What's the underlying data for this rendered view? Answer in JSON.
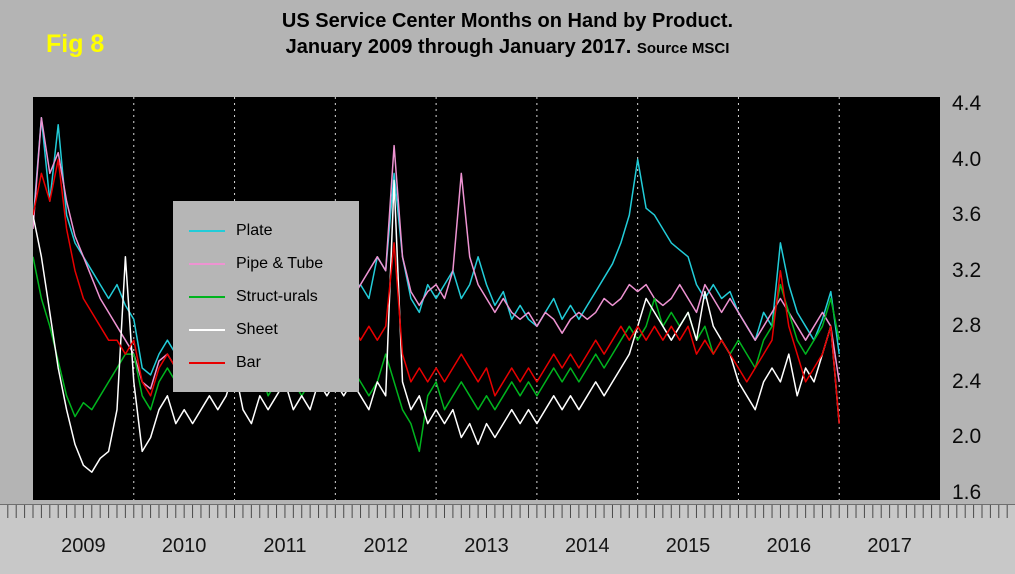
{
  "figure": {
    "label": "Fig 8"
  },
  "title": {
    "line1": "US Service Center Months on Hand by Product.",
    "line2": "January 2009 through January 2017.",
    "source": "Source MSCI"
  },
  "colors": {
    "background": "#b4b4b4",
    "plot_background": "#000000",
    "axis_band": "#c8c8c8",
    "fig_label": "#ffff00",
    "gridline": "#d8d8d8"
  },
  "chart_data": {
    "type": "line",
    "title": "US Service Center Months on Hand by Product. January 2009 through January 2017.",
    "source": "Source MSCI",
    "x_unit": "month",
    "x_range": [
      "2009-01",
      "2017-01"
    ],
    "categories": [
      "2009",
      "2010",
      "2011",
      "2012",
      "2013",
      "2014",
      "2015",
      "2016",
      "2017"
    ],
    "months_span": 108,
    "y_ticks": [
      4.4,
      4.0,
      3.6,
      3.2,
      2.8,
      2.4,
      2.0,
      1.6
    ],
    "ylim": [
      1.55,
      4.45
    ],
    "grid": "vertical-dashed-at-year-boundaries",
    "legend_position": "top-left-inside",
    "series": [
      {
        "name": "Plate",
        "color": "#22ccd8",
        "values": [
          3.55,
          4.3,
          3.7,
          4.25,
          3.6,
          3.4,
          3.3,
          3.2,
          3.1,
          3.0,
          3.1,
          2.95,
          2.85,
          2.5,
          2.45,
          2.6,
          2.7,
          2.6,
          2.75,
          2.6,
          2.7,
          2.8,
          2.7,
          2.8,
          2.9,
          2.7,
          2.6,
          2.75,
          2.6,
          2.8,
          3.0,
          2.85,
          2.7,
          2.8,
          3.0,
          2.9,
          3.0,
          2.9,
          3.05,
          3.1,
          3.0,
          3.3,
          3.2,
          3.9,
          3.3,
          3.0,
          2.9,
          3.1,
          3.0,
          3.1,
          3.2,
          3.0,
          3.1,
          3.3,
          3.1,
          2.95,
          3.05,
          2.85,
          2.95,
          2.85,
          2.8,
          2.9,
          3.0,
          2.85,
          2.95,
          2.85,
          2.95,
          3.05,
          3.15,
          3.25,
          3.4,
          3.6,
          4.0,
          3.65,
          3.6,
          3.5,
          3.4,
          3.35,
          3.3,
          3.1,
          3.0,
          3.1,
          3.0,
          3.05,
          2.9,
          2.8,
          2.7,
          2.9,
          2.8,
          3.4,
          3.1,
          2.9,
          2.8,
          2.7,
          2.85,
          3.05,
          2.6
        ]
      },
      {
        "name": "Pipe & Tube",
        "color": "#ee93d2",
        "values": [
          3.5,
          4.3,
          3.9,
          4.05,
          3.7,
          3.45,
          3.3,
          3.15,
          3.0,
          2.9,
          2.8,
          2.7,
          2.6,
          2.4,
          2.35,
          2.55,
          2.6,
          2.5,
          2.6,
          2.5,
          2.6,
          2.7,
          2.6,
          2.7,
          2.8,
          2.6,
          2.5,
          2.65,
          2.55,
          2.65,
          2.75,
          2.65,
          2.7,
          2.8,
          2.9,
          2.8,
          2.9,
          2.8,
          3.0,
          3.1,
          3.2,
          3.3,
          3.2,
          4.1,
          3.3,
          3.05,
          2.95,
          3.05,
          3.1,
          3.0,
          3.2,
          3.9,
          3.3,
          3.1,
          3.0,
          2.9,
          3.0,
          2.9,
          2.85,
          2.9,
          2.8,
          2.9,
          2.85,
          2.75,
          2.85,
          2.9,
          2.85,
          2.9,
          3.0,
          2.95,
          3.0,
          3.1,
          3.05,
          3.1,
          3.0,
          2.95,
          3.0,
          3.1,
          3.0,
          2.9,
          3.1,
          3.0,
          2.9,
          3.0,
          2.9,
          2.8,
          2.7,
          2.8,
          2.9,
          3.0,
          2.9,
          2.8,
          2.7,
          2.8,
          2.9,
          2.8,
          2.4
        ]
      },
      {
        "name": "Struct-urals",
        "color": "#00b41e",
        "values": [
          3.3,
          3.0,
          2.8,
          2.55,
          2.3,
          2.15,
          2.25,
          2.2,
          2.3,
          2.4,
          2.5,
          2.6,
          2.6,
          2.3,
          2.2,
          2.4,
          2.5,
          2.4,
          2.5,
          2.4,
          2.5,
          2.6,
          2.5,
          2.55,
          2.7,
          2.5,
          2.4,
          2.5,
          2.3,
          2.4,
          2.5,
          2.4,
          2.3,
          2.4,
          2.5,
          2.4,
          2.5,
          2.4,
          2.5,
          2.4,
          2.3,
          2.4,
          2.6,
          2.4,
          2.2,
          2.1,
          1.9,
          2.3,
          2.4,
          2.2,
          2.3,
          2.4,
          2.3,
          2.2,
          2.3,
          2.2,
          2.3,
          2.4,
          2.3,
          2.4,
          2.3,
          2.4,
          2.5,
          2.4,
          2.5,
          2.4,
          2.5,
          2.6,
          2.5,
          2.6,
          2.7,
          2.8,
          2.7,
          2.8,
          3.0,
          2.8,
          2.9,
          2.8,
          2.9,
          2.7,
          2.8,
          2.6,
          2.7,
          2.6,
          2.7,
          2.6,
          2.5,
          2.7,
          2.8,
          3.1,
          2.9,
          2.7,
          2.6,
          2.7,
          2.8,
          3.0,
          2.7
        ]
      },
      {
        "name": "Sheet",
        "color": "#ffffff",
        "values": [
          3.6,
          3.3,
          2.9,
          2.5,
          2.2,
          1.95,
          1.8,
          1.75,
          1.85,
          1.9,
          2.2,
          3.3,
          2.4,
          1.9,
          2.0,
          2.2,
          2.3,
          2.1,
          2.2,
          2.1,
          2.2,
          2.3,
          2.2,
          2.3,
          2.5,
          2.2,
          2.1,
          2.3,
          2.2,
          2.3,
          2.4,
          2.2,
          2.3,
          2.2,
          2.4,
          2.3,
          2.4,
          2.3,
          2.4,
          2.3,
          2.2,
          2.4,
          2.3,
          3.85,
          2.4,
          2.2,
          2.3,
          2.1,
          2.2,
          2.1,
          2.2,
          2.0,
          2.1,
          1.95,
          2.1,
          2.0,
          2.1,
          2.2,
          2.1,
          2.2,
          2.1,
          2.2,
          2.3,
          2.2,
          2.3,
          2.2,
          2.3,
          2.4,
          2.3,
          2.4,
          2.5,
          2.6,
          2.8,
          3.0,
          2.9,
          2.8,
          2.7,
          2.8,
          2.9,
          2.7,
          3.05,
          2.8,
          2.7,
          2.6,
          2.4,
          2.3,
          2.2,
          2.4,
          2.5,
          2.4,
          2.6,
          2.3,
          2.5,
          2.4,
          2.6,
          2.8,
          2.1
        ]
      },
      {
        "name": "Bar",
        "color": "#e80000",
        "values": [
          3.6,
          3.9,
          3.7,
          4.0,
          3.5,
          3.2,
          3.0,
          2.9,
          2.8,
          2.7,
          2.7,
          2.6,
          2.7,
          2.4,
          2.3,
          2.5,
          2.6,
          2.5,
          2.6,
          2.5,
          2.6,
          2.6,
          2.5,
          2.6,
          2.7,
          2.5,
          2.4,
          2.6,
          2.5,
          2.6,
          2.7,
          2.6,
          2.5,
          2.6,
          2.7,
          2.6,
          2.7,
          2.6,
          2.8,
          2.7,
          2.8,
          2.7,
          2.8,
          3.4,
          2.6,
          2.4,
          2.5,
          2.4,
          2.5,
          2.4,
          2.5,
          2.6,
          2.5,
          2.4,
          2.5,
          2.3,
          2.4,
          2.5,
          2.4,
          2.5,
          2.4,
          2.5,
          2.6,
          2.5,
          2.6,
          2.5,
          2.6,
          2.7,
          2.6,
          2.7,
          2.8,
          2.7,
          2.8,
          2.7,
          2.8,
          2.7,
          2.8,
          2.7,
          2.8,
          2.6,
          2.7,
          2.6,
          2.7,
          2.6,
          2.5,
          2.4,
          2.5,
          2.6,
          2.7,
          3.2,
          2.8,
          2.6,
          2.4,
          2.5,
          2.6,
          2.8,
          2.1
        ]
      }
    ]
  }
}
